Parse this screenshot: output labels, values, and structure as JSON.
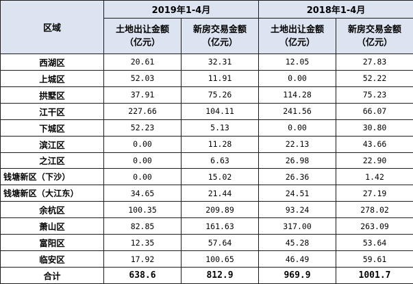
{
  "header": {
    "region_label": "区域",
    "period_2019": "2019年1-4月",
    "period_2018": "2018年1-4月",
    "col_land": "土地出让金额",
    "col_house": "新房交易金额",
    "unit": "（亿元）"
  },
  "rows": [
    {
      "region": "西湖区",
      "land_2019": "20.61",
      "house_2019": "32.31",
      "land_2018": "12.05",
      "house_2018": "27.83"
    },
    {
      "region": "上城区",
      "land_2019": "52.03",
      "house_2019": "11.91",
      "land_2018": "0.00",
      "house_2018": "52.22"
    },
    {
      "region": "拱墅区",
      "land_2019": "37.91",
      "house_2019": "75.26",
      "land_2018": "114.28",
      "house_2018": "75.23"
    },
    {
      "region": "江干区",
      "land_2019": "227.66",
      "house_2019": "104.11",
      "land_2018": "241.56",
      "house_2018": "66.07"
    },
    {
      "region": "下城区",
      "land_2019": "52.23",
      "house_2019": "5.13",
      "land_2018": "0.00",
      "house_2018": "30.80"
    },
    {
      "region": "滨江区",
      "land_2019": "0.00",
      "house_2019": "11.28",
      "land_2018": "22.13",
      "house_2018": "43.66"
    },
    {
      "region": "之江区",
      "land_2019": "0.00",
      "house_2019": "6.63",
      "land_2018": "26.98",
      "house_2018": "22.90"
    },
    {
      "region": "钱塘新区（下沙）",
      "land_2019": "0.00",
      "house_2019": "15.02",
      "land_2018": "26.36",
      "house_2018": "1.42"
    },
    {
      "region": "钱塘新区（大江东）",
      "land_2019": "34.65",
      "house_2019": "21.44",
      "land_2018": "24.51",
      "house_2018": "27.19"
    },
    {
      "region": "余杭区",
      "land_2019": "100.35",
      "house_2019": "209.89",
      "land_2018": "93.24",
      "house_2018": "278.02"
    },
    {
      "region": "萧山区",
      "land_2019": "82.85",
      "house_2019": "161.63",
      "land_2018": "317.00",
      "house_2018": "263.09"
    },
    {
      "region": "富阳区",
      "land_2019": "12.35",
      "house_2019": "57.64",
      "land_2018": "45.28",
      "house_2018": "53.64"
    },
    {
      "region": "临安区",
      "land_2019": "17.92",
      "house_2019": "100.65",
      "land_2018": "46.49",
      "house_2018": "59.61"
    }
  ],
  "total": {
    "label": "合计",
    "land_2019": "638.6",
    "house_2019": "812.9",
    "land_2018": "969.9",
    "house_2018": "1001.7"
  }
}
